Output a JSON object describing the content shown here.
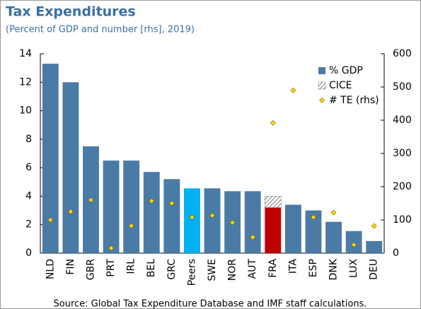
{
  "chart_data": {
    "type": "bar",
    "title": "Tax Expenditures",
    "subtitle": "(Percent of GDP and number [rhs], 2019)",
    "source": "Source: Global Tax Expenditure Database and IMF staff calculations.",
    "categories": [
      "NLD",
      "FIN",
      "GBR",
      "PRT",
      "IRL",
      "BEL",
      "GRC",
      "Peers",
      "SWE",
      "NOR",
      "AUT",
      "FRA",
      "ITA",
      "ESP",
      "DNK",
      "LUX",
      "DEU"
    ],
    "series": [
      {
        "name": "% GDP",
        "color": "#4a7ba6",
        "values": [
          13.3,
          12.0,
          7.5,
          6.5,
          6.5,
          5.7,
          5.2,
          4.55,
          4.55,
          4.35,
          4.35,
          3.2,
          3.4,
          3.0,
          2.2,
          1.55,
          0.85
        ],
        "colors": [
          "#4a7ba6",
          "#4a7ba6",
          "#4a7ba6",
          "#4a7ba6",
          "#4a7ba6",
          "#4a7ba6",
          "#4a7ba6",
          "#00b0f0",
          "#4a7ba6",
          "#4a7ba6",
          "#4a7ba6",
          "#c00000",
          "#4a7ba6",
          "#4a7ba6",
          "#4a7ba6",
          "#4a7ba6",
          "#4a7ba6"
        ]
      },
      {
        "name": "CICE",
        "color": "#777777",
        "values": [
          null,
          null,
          null,
          null,
          null,
          null,
          null,
          null,
          null,
          null,
          null,
          0.8,
          null,
          null,
          null,
          null,
          null
        ]
      },
      {
        "name": "# TE (rhs)",
        "color": "#ffd700",
        "axis": "y2",
        "values": [
          100,
          125,
          160,
          15,
          82,
          157,
          150,
          108,
          113,
          92,
          48,
          392,
          490,
          108,
          122,
          25,
          82
        ]
      }
    ],
    "ylim": [
      0,
      14
    ],
    "yticks": [
      0,
      2,
      4,
      6,
      8,
      10,
      12,
      14
    ],
    "y2lim": [
      0,
      600
    ],
    "y2ticks": [
      0,
      100,
      200,
      300,
      400,
      500,
      600
    ],
    "legend": "upper right"
  }
}
